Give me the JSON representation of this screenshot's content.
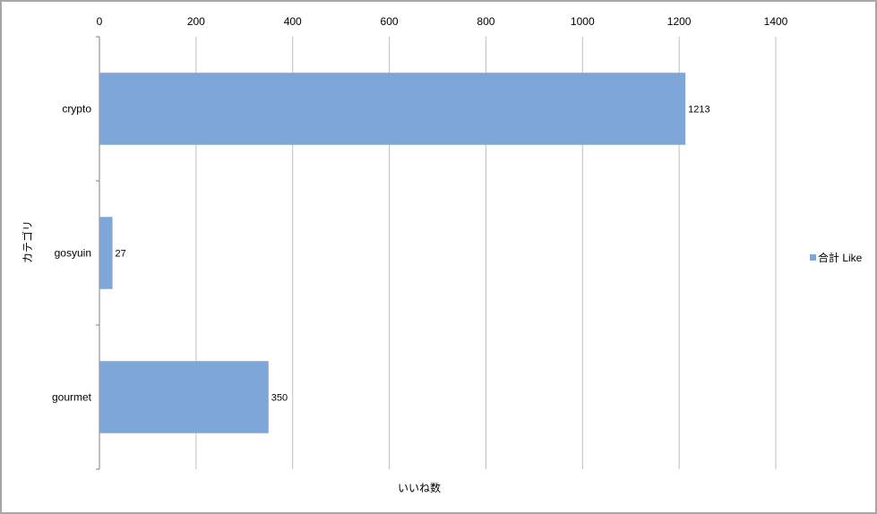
{
  "chart_data": {
    "type": "bar",
    "orientation": "horizontal",
    "categories": [
      "crypto",
      "gosyuin",
      "gourmet"
    ],
    "series": [
      {
        "name": "合計 Like",
        "values": [
          1213,
          27,
          350
        ],
        "color": "#7ea6d8"
      }
    ],
    "xlabel": "いいね数",
    "ylabel": "カテゴリ",
    "xlim": [
      0,
      1400
    ],
    "x_ticks": [
      0,
      200,
      400,
      600,
      800,
      1000,
      1200,
      1400
    ],
    "x_axis_position": "top",
    "grid": true,
    "legend_position": "right",
    "data_labels": true
  }
}
